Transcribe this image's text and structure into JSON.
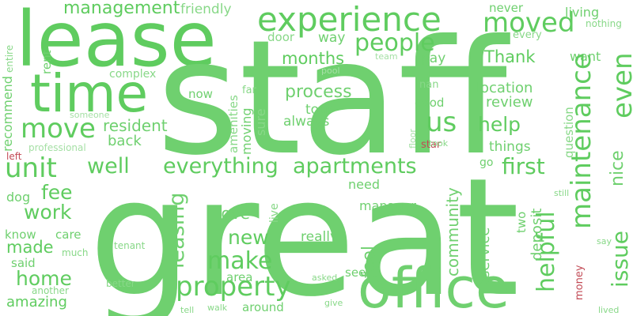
{
  "words": [
    "lease",
    "staff",
    "great",
    "office",
    "time",
    "experience",
    "people",
    "moved",
    "management",
    "friendly",
    "never",
    "living",
    "nothing",
    "every",
    "want",
    "Thank",
    "months",
    "way",
    "door",
    "rent",
    "entire",
    "team",
    "pay",
    "move",
    "unit",
    "resident",
    "process",
    "complex",
    "pool",
    "even",
    "maintenance",
    "us",
    "help",
    "location",
    "review",
    "first",
    "nice",
    "issue",
    "well",
    "everything",
    "apartments",
    "fee",
    "work",
    "back",
    "leasing",
    "property",
    "home",
    "made",
    "amazing",
    "new",
    "make",
    "love",
    "feel",
    "manager",
    "community",
    "service",
    "helpful",
    "deposit",
    "two",
    "question",
    "things",
    "go",
    "tour",
    "always",
    "sure",
    "moving",
    "amenities",
    "now",
    "far",
    "someone",
    "professional",
    "recommend",
    "left",
    "dog",
    "know",
    "care",
    "said",
    "much",
    "tenant",
    "another",
    "better",
    "area",
    "really",
    "need",
    "live",
    "see",
    "asked",
    "around",
    "walk",
    "tell",
    "give",
    "money",
    "lived",
    "say",
    "still",
    "star",
    "nan",
    "good",
    "took",
    "floor"
  ],
  "colors": {
    "green_dark": "#3fbf3f",
    "green_mid": "#5fcc5f",
    "green_light": "#6fd06f",
    "green_pale": "#88d888",
    "green_faint": "#a6e0a6",
    "red": "#c24a55"
  }
}
